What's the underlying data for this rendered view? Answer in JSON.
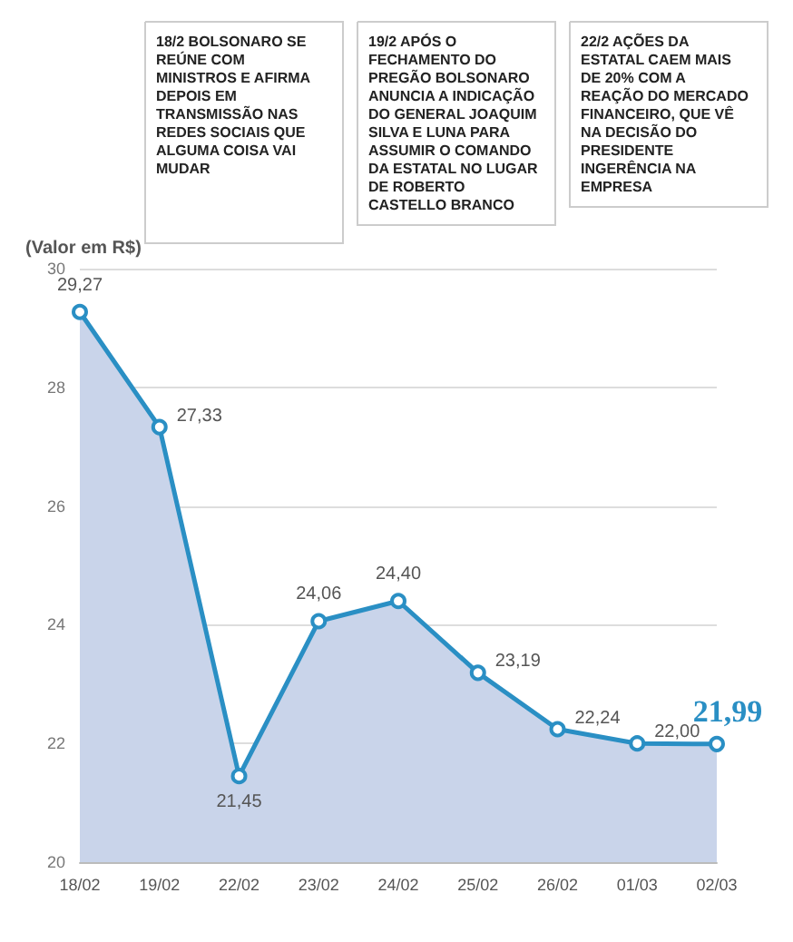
{
  "chart_data": {
    "type": "area",
    "ylabel": "(Valor em R$)",
    "categories": [
      "18/02",
      "19/02",
      "22/02",
      "23/02",
      "24/02",
      "25/02",
      "26/02",
      "01/03",
      "02/03"
    ],
    "series": [
      {
        "color": "#2a8fc4",
        "values": [
          29.27,
          27.33,
          21.45,
          24.06,
          24.4,
          23.19,
          22.24,
          22.0,
          21.99
        ],
        "value_labels": [
          "29,27",
          "27,33",
          "21,45",
          "24,06",
          "24,40",
          "23,19",
          "22,24",
          "22,00",
          "21,99"
        ]
      }
    ],
    "ylim": [
      20,
      30
    ],
    "yticks": [
      20,
      22,
      24,
      26,
      28,
      30
    ],
    "grid": "y",
    "marker": "circle",
    "line_style": "solid",
    "annotations": [
      "18/2 BOLSONARO SE REÚNE COM MINISTROS E AFIRMA DEPOIS EM TRANSMISSÃO NAS REDES SOCIAIS QUE ALGUMA COISA VAI MUDAR",
      "19/2 APÓS O FECHAMENTO DO PREGÃO BOLSONARO ANUNCIA A INDICAÇÃO DO GENERAL JOAQUIM SILVA E LUNA PARA ASSUMIR O COMANDO DA ESTATAL NO LUGAR DE ROBERTO CASTELLO BRANCO",
      "22/2 AÇÕES DA ESTATAL CAEM MAIS DE 20% COM A REAÇÃO DO MERCADO FINANCEIRO, QUE VÊ NA DECISÃO DO PRESIDENTE INGERÊNCIA NA EMPRESA"
    ]
  }
}
